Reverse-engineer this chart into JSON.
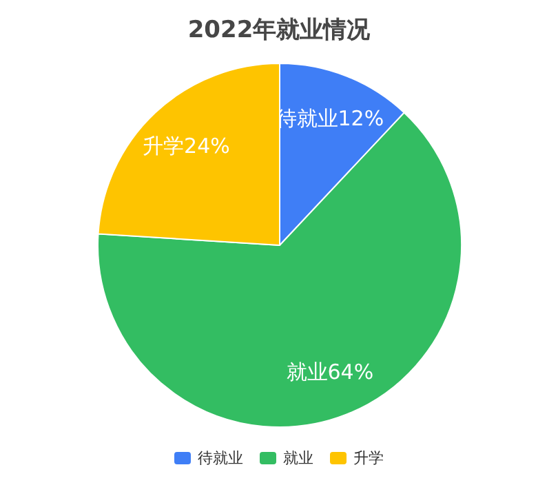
{
  "chart_data": {
    "type": "pie",
    "title": "2022年就业情况",
    "categories": [
      "待就业",
      "就业",
      "升学"
    ],
    "values": [
      12,
      64,
      24
    ],
    "colors": [
      "#3f7ef6",
      "#33bd62",
      "#fec400"
    ],
    "value_labels": [
      "待就业12%",
      "就业64%",
      "升学24%"
    ],
    "legend": "bottom"
  }
}
